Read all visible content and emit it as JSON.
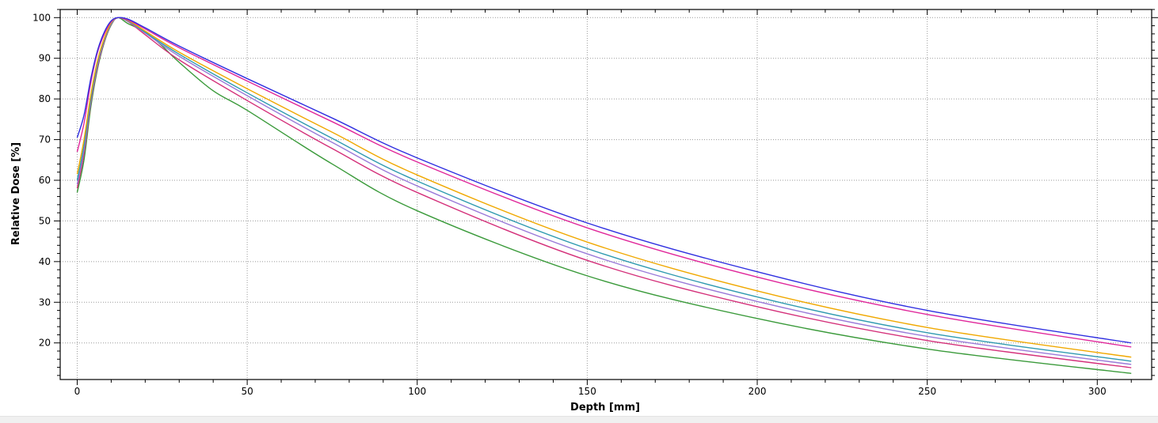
{
  "chart_data": {
    "type": "line",
    "title": "",
    "xlabel": "Depth [mm]",
    "ylabel": "Relative Dose [%]",
    "xlim": [
      -5,
      316
    ],
    "ylim": [
      11,
      102
    ],
    "xticks": [
      0,
      50,
      100,
      150,
      200,
      250,
      300
    ],
    "yticks": [
      20,
      30,
      40,
      50,
      60,
      70,
      80,
      90,
      100
    ],
    "x_minor_step": 10,
    "y_minor_step": 2,
    "grid": true,
    "legend": "none",
    "series": [
      {
        "color": "#2f2fe0",
        "x": [
          0,
          2,
          4,
          6,
          8,
          10,
          12,
          15,
          20,
          30,
          50,
          75,
          100,
          150,
          200,
          250,
          310
        ],
        "values": [
          70.5,
          76,
          85,
          92,
          96.5,
          99.2,
          100,
          99.6,
          97.5,
          93,
          85,
          75.3,
          65.5,
          49.5,
          37.5,
          28,
          20
        ]
      },
      {
        "color": "#e0279a",
        "x": [
          0,
          2,
          4,
          6,
          8,
          10,
          12,
          15,
          20,
          30,
          50,
          75,
          100,
          150,
          200,
          250,
          310
        ],
        "values": [
          67,
          74,
          84,
          91.5,
          96,
          99,
          100,
          99.4,
          97.2,
          92.6,
          84.4,
          74.4,
          64.5,
          48.3,
          36.2,
          27,
          19
        ]
      },
      {
        "color": "#f0a800",
        "x": [
          0,
          2,
          4,
          6,
          8,
          10,
          12,
          15,
          20,
          30,
          50,
          75,
          100,
          150,
          200,
          250,
          310
        ],
        "values": [
          61.5,
          70,
          81,
          89.5,
          95,
          98.8,
          100,
          99.3,
          96.7,
          91.5,
          82.5,
          71.8,
          61.3,
          44.8,
          32.8,
          23.8,
          16.5
        ]
      },
      {
        "color": "#2f9ab0",
        "x": [
          0,
          2,
          4,
          6,
          8,
          10,
          12,
          15,
          20,
          30,
          50,
          75,
          100,
          150,
          200,
          250,
          310
        ],
        "values": [
          60,
          68.5,
          80,
          89,
          94.8,
          98.7,
          100,
          99.2,
          96.4,
          91,
          81.5,
          70.3,
          59.8,
          43.2,
          31.3,
          22.5,
          15.5
        ]
      },
      {
        "color": "#9a7ad8",
        "x": [
          0,
          2,
          4,
          6,
          8,
          10,
          12,
          15,
          20,
          30,
          50,
          75,
          100,
          150,
          200,
          250,
          310
        ],
        "values": [
          59,
          67.5,
          79.5,
          88.5,
          94.5,
          98.5,
          100,
          99.1,
          96.2,
          90.5,
          80.8,
          69.3,
          58.6,
          41.9,
          30.2,
          21.6,
          14.7
        ]
      },
      {
        "color": "#d4307a",
        "x": [
          0,
          2,
          4,
          6,
          8,
          10,
          12,
          15,
          20,
          30,
          50,
          75,
          100,
          150,
          200,
          250,
          310
        ],
        "values": [
          58,
          66.5,
          79,
          88,
          94.3,
          98.4,
          100,
          99,
          95.8,
          89.6,
          79.6,
          67.8,
          57,
          40.3,
          28.9,
          20.6,
          13.9
        ]
      },
      {
        "color": "#3a9a3a",
        "x": [
          0,
          2,
          4,
          6,
          8,
          10,
          12,
          15,
          20,
          25,
          30,
          40,
          50,
          75,
          100,
          150,
          200,
          250,
          310
        ],
        "values": [
          57,
          65,
          78,
          87.5,
          94,
          98.2,
          100,
          98.5,
          96.5,
          93,
          89,
          82,
          77.2,
          64,
          52.5,
          36.5,
          26,
          18.5,
          12.5
        ]
      }
    ]
  }
}
